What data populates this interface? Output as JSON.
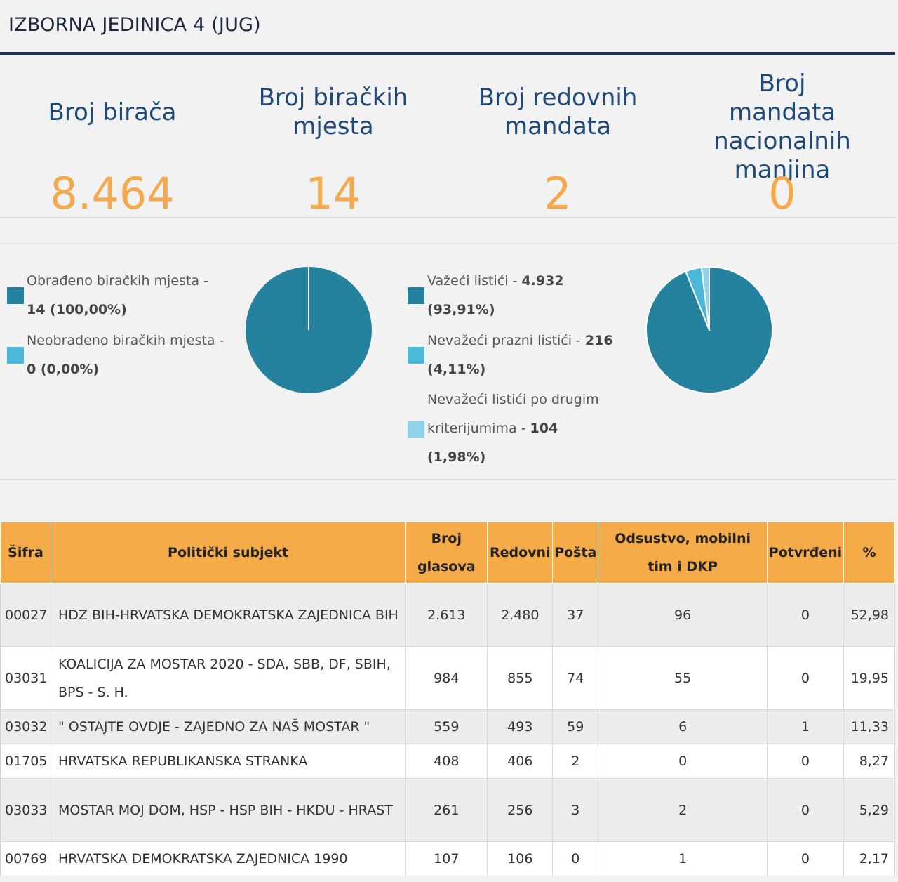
{
  "header": {
    "title": "IZBORNA JEDINICA 4 (JUG)"
  },
  "stats": [
    {
      "label": "Broj birača",
      "value": "8.464"
    },
    {
      "label": "Broj biračkih mjesta",
      "value": "14"
    },
    {
      "label": "Broj redovnih mandata",
      "value": "2"
    },
    {
      "label": "Broj mandata nacionalnih manjina",
      "value": "0"
    }
  ],
  "colors": {
    "pie_main": "#24829e",
    "pie_light": "#4cb8d9",
    "pie_lighter": "#8fd3ea",
    "accent": "#f5ac48",
    "value": "#f5a94a",
    "header_rule": "#1f3352"
  },
  "charts": {
    "polling_stations": {
      "legend": [
        {
          "text": "Obrađeno biračkih mjesta - ",
          "value": "14 (100,00%)",
          "share": 100.0
        },
        {
          "text": "Neobrađeno biračkih mjesta - ",
          "value": "0 (0,00%)",
          "share": 0.0
        }
      ]
    },
    "ballots": {
      "legend": [
        {
          "text": "Važeći listići - ",
          "value": "4.932",
          "pct": "(93,91%)",
          "share": 93.91
        },
        {
          "text": "Nevažeći prazni listići - ",
          "value": "216",
          "pct": "(4,11%)",
          "share": 4.11
        },
        {
          "text": "Nevažeći listići po drugim",
          "text2": "kriterijumima - ",
          "value": "104",
          "pct": "(1,98%)",
          "share": 1.98
        }
      ]
    }
  },
  "table": {
    "headers": [
      "Šifra",
      "Politički subjekt",
      "Broj glasova",
      "Redovni",
      "Pošta",
      "Odsustvo, mobilni tim i DKP",
      "Potvrđeni",
      "%"
    ],
    "rows": [
      [
        "00027",
        "HDZ BIH-HRVATSKA DEMOKRATSKA ZAJEDNICA BIH",
        "2.613",
        "2.480",
        "37",
        "96",
        "0",
        "52,98"
      ],
      [
        "03031",
        "KOALICIJA ZA MOSTAR 2020 - SDA, SBB, DF, SBIH, BPS - S. H.",
        "984",
        "855",
        "74",
        "55",
        "0",
        "19,95"
      ],
      [
        "03032",
        "\" OSTAJTE OVDJE - ZAJEDNO ZA NAŠ MOSTAR \"",
        "559",
        "493",
        "59",
        "6",
        "1",
        "11,33"
      ],
      [
        "01705",
        "HRVATSKA REPUBLIKANSKA STRANKA",
        "408",
        "406",
        "2",
        "0",
        "0",
        "8,27"
      ],
      [
        "03033",
        "MOSTAR MOJ DOM, HSP - HSP BIH - HKDU - HRAST",
        "261",
        "256",
        "3",
        "2",
        "0",
        "5,29"
      ],
      [
        "00769",
        "HRVATSKA DEMOKRATSKA ZAJEDNICA 1990",
        "107",
        "106",
        "0",
        "1",
        "0",
        "2,17"
      ]
    ]
  }
}
